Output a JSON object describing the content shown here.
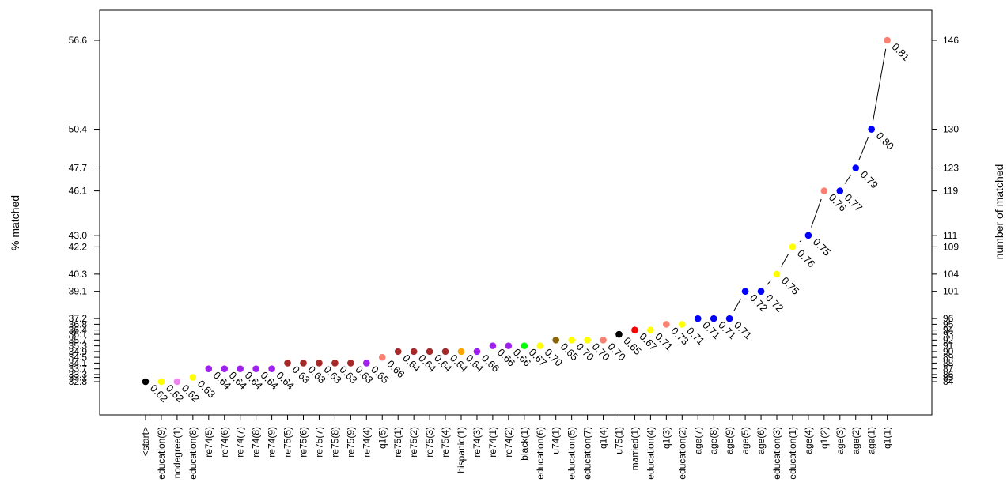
{
  "chart_data": {
    "type": "scatter",
    "title": "",
    "ylabel_left": "% matched",
    "ylabel_right": "number of matched",
    "grid": false,
    "legend": "none",
    "left_axis": {
      "ticks": [
        32.8,
        33.1,
        33.3,
        33.7,
        34.1,
        34.5,
        34.9,
        35.3,
        35.7,
        36.1,
        36.4,
        36.8,
        37.2,
        39.1,
        40.3,
        42.2,
        43.0,
        46.1,
        47.7,
        50.4,
        56.6
      ],
      "labels": [
        "32.8",
        "33.1",
        "33.3",
        "33.7",
        "34.1",
        "34.5",
        "34.9",
        "35.3",
        "35.7",
        "36.1",
        "36.4",
        "36.8",
        "37.2",
        "39.1",
        "40.3",
        "42.2",
        "43.0",
        "46.1",
        "47.7",
        "50.4",
        "56.6"
      ]
    },
    "right_axis": {
      "labels": [
        "84",
        "85",
        "86",
        "87",
        "88",
        "89",
        "90",
        "91",
        "92",
        "93",
        "94",
        "95",
        "96",
        "101",
        "104",
        "109",
        "111",
        "119",
        "123",
        "130",
        "146"
      ]
    },
    "points": [
      {
        "label": "<start>",
        "y": 32.8,
        "value": "0.62",
        "color": "#000000"
      },
      {
        "label": "education(9)",
        "y": 32.8,
        "value": "0.62",
        "color": "#ffff00"
      },
      {
        "label": "nodegree(1)",
        "y": 32.8,
        "value": "0.62",
        "color": "#ee82ee"
      },
      {
        "label": "education(8)",
        "y": 33.1,
        "value": "0.63",
        "color": "#ffff00"
      },
      {
        "label": "re74(5)",
        "y": 33.7,
        "value": "0.64",
        "color": "#a020f0"
      },
      {
        "label": "re74(6)",
        "y": 33.7,
        "value": "0.64",
        "color": "#a020f0"
      },
      {
        "label": "re74(7)",
        "y": 33.7,
        "value": "0.64",
        "color": "#a020f0"
      },
      {
        "label": "re74(8)",
        "y": 33.7,
        "value": "0.64",
        "color": "#a020f0"
      },
      {
        "label": "re74(9)",
        "y": 33.7,
        "value": "0.64",
        "color": "#a020f0"
      },
      {
        "label": "re75(5)",
        "y": 34.1,
        "value": "0.63",
        "color": "#a52a2a"
      },
      {
        "label": "re75(6)",
        "y": 34.1,
        "value": "0.63",
        "color": "#a52a2a"
      },
      {
        "label": "re75(7)",
        "y": 34.1,
        "value": "0.63",
        "color": "#a52a2a"
      },
      {
        "label": "re75(8)",
        "y": 34.1,
        "value": "0.63",
        "color": "#a52a2a"
      },
      {
        "label": "re75(9)",
        "y": 34.1,
        "value": "0.63",
        "color": "#a52a2a"
      },
      {
        "label": "re74(4)",
        "y": 34.1,
        "value": "0.65",
        "color": "#a020f0"
      },
      {
        "label": "q1(5)",
        "y": 34.5,
        "value": "0.66",
        "color": "#fa8072"
      },
      {
        "label": "re75(1)",
        "y": 34.9,
        "value": "0.64",
        "color": "#a52a2a"
      },
      {
        "label": "re75(2)",
        "y": 34.9,
        "value": "0.64",
        "color": "#a52a2a"
      },
      {
        "label": "re75(3)",
        "y": 34.9,
        "value": "0.64",
        "color": "#a52a2a"
      },
      {
        "label": "re75(4)",
        "y": 34.9,
        "value": "0.64",
        "color": "#a52a2a"
      },
      {
        "label": "hispanic(1)",
        "y": 34.9,
        "value": "0.64",
        "color": "#ffa500"
      },
      {
        "label": "re74(3)",
        "y": 34.9,
        "value": "0.66",
        "color": "#a020f0"
      },
      {
        "label": "re74(1)",
        "y": 35.3,
        "value": "0.66",
        "color": "#a020f0"
      },
      {
        "label": "re74(2)",
        "y": 35.3,
        "value": "0.66",
        "color": "#a020f0"
      },
      {
        "label": "black(1)",
        "y": 35.3,
        "value": "0.67",
        "color": "#00ff00"
      },
      {
        "label": "education(6)",
        "y": 35.3,
        "value": "0.70",
        "color": "#ffff00"
      },
      {
        "label": "u74(1)",
        "y": 35.7,
        "value": "0.65",
        "color": "#8b6508"
      },
      {
        "label": "education(5)",
        "y": 35.7,
        "value": "0.70",
        "color": "#ffff00"
      },
      {
        "label": "education(7)",
        "y": 35.7,
        "value": "0.70",
        "color": "#ffff00"
      },
      {
        "label": "q1(4)",
        "y": 35.7,
        "value": "0.70",
        "color": "#fa8072"
      },
      {
        "label": "u75(1)",
        "y": 36.1,
        "value": "0.65",
        "color": "#000000"
      },
      {
        "label": "married(1)",
        "y": 36.4,
        "value": "0.67",
        "color": "#ff0000"
      },
      {
        "label": "education(4)",
        "y": 36.4,
        "value": "0.71",
        "color": "#ffff00"
      },
      {
        "label": "q1(3)",
        "y": 36.8,
        "value": "0.73",
        "color": "#fa8072"
      },
      {
        "label": "education(2)",
        "y": 36.8,
        "value": "0.71",
        "color": "#ffff00"
      },
      {
        "label": "age(7)",
        "y": 37.2,
        "value": "0.71",
        "color": "#0000ff"
      },
      {
        "label": "age(8)",
        "y": 37.2,
        "value": "0.71",
        "color": "#0000ff"
      },
      {
        "label": "age(9)",
        "y": 37.2,
        "value": "0.71",
        "color": "#0000ff"
      },
      {
        "label": "age(5)",
        "y": 39.1,
        "value": "0.72",
        "color": "#0000ff"
      },
      {
        "label": "age(6)",
        "y": 39.1,
        "value": "0.72",
        "color": "#0000ff"
      },
      {
        "label": "education(3)",
        "y": 40.3,
        "value": "0.75",
        "color": "#ffff00"
      },
      {
        "label": "education(1)",
        "y": 42.2,
        "value": "0.76",
        "color": "#ffff00"
      },
      {
        "label": "age(4)",
        "y": 43.0,
        "value": "0.75",
        "color": "#0000ff"
      },
      {
        "label": "q1(2)",
        "y": 46.1,
        "value": "0.76",
        "color": "#fa8072"
      },
      {
        "label": "age(3)",
        "y": 46.1,
        "value": "0.77",
        "color": "#0000ff"
      },
      {
        "label": "age(2)",
        "y": 47.7,
        "value": "0.79",
        "color": "#0000ff"
      },
      {
        "label": "age(1)",
        "y": 50.4,
        "value": "0.80",
        "color": "#0000ff"
      },
      {
        "label": "q1(1)",
        "y": 56.6,
        "value": "0.81",
        "color": "#fa8072"
      }
    ]
  }
}
